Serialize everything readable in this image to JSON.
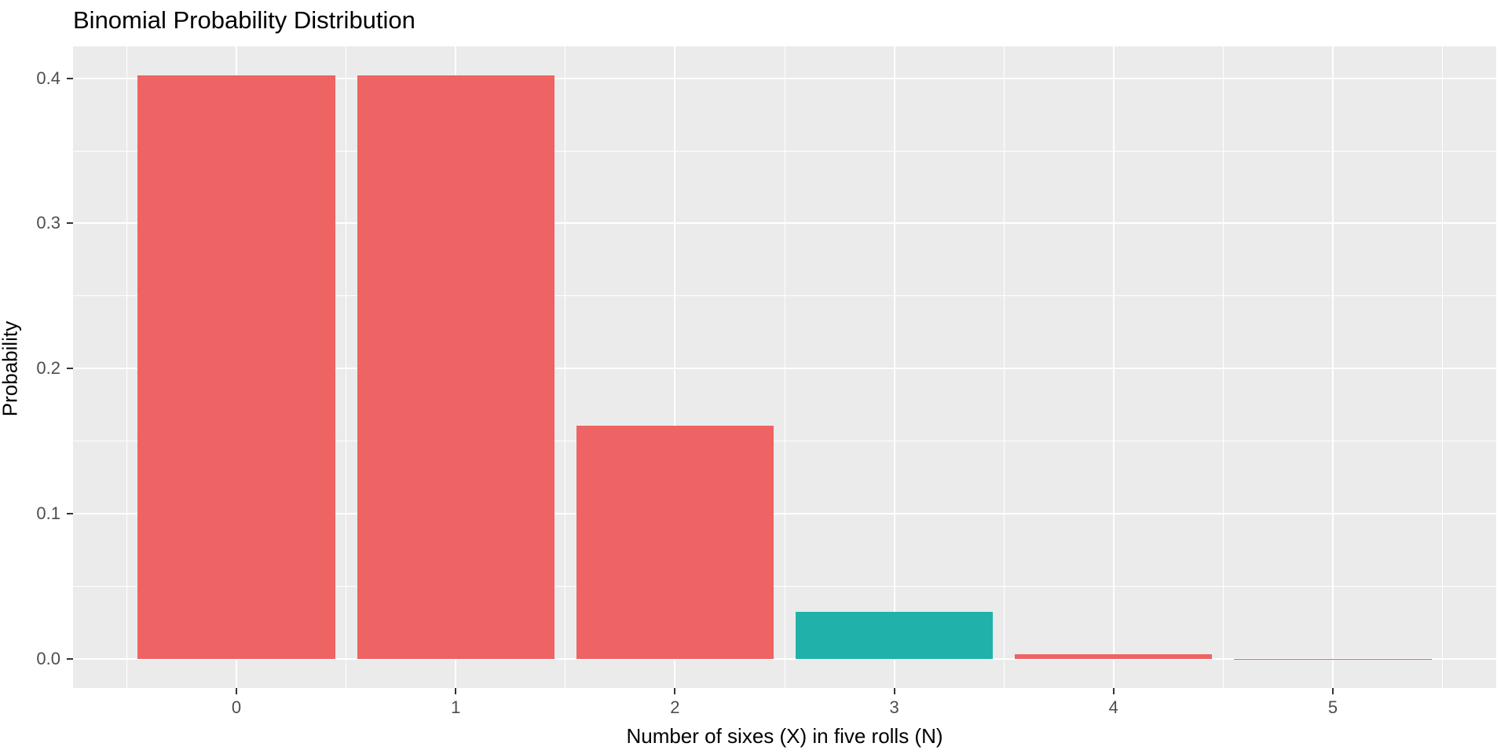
{
  "chart_data": {
    "type": "bar",
    "title": "Binomial Probability Distribution",
    "xlabel": "Number of sixes (X) in five rolls (N)",
    "ylabel": "Probability",
    "x": [
      0,
      1,
      2,
      3,
      4,
      5
    ],
    "values": [
      0.4019,
      0.4019,
      0.1608,
      0.0322,
      0.0032,
      0.0001
    ],
    "bar_width": 0.9,
    "highlight_index": 3,
    "xlim": [
      -0.745,
      5.745
    ],
    "ylim": [
      -0.0201,
      0.422
    ],
    "x_ticks": {
      "values": [
        0,
        1,
        2,
        3,
        4,
        5
      ],
      "labels": [
        "0",
        "1",
        "2",
        "3",
        "4",
        "5"
      ]
    },
    "y_ticks": {
      "values": [
        0,
        0.1,
        0.2,
        0.3,
        0.4
      ],
      "labels": [
        "0.0",
        "0.1",
        "0.2",
        "0.3",
        "0.4"
      ]
    },
    "x_minor": [
      -0.5,
      0.5,
      1.5,
      2.5,
      3.5,
      4.5,
      5.5
    ],
    "y_minor": [
      0.05,
      0.15,
      0.25,
      0.35
    ],
    "grid": true,
    "legend": "none",
    "colors": {
      "bar_default": "#EE6363",
      "bar_highlight": "#20B2AA",
      "panel_background": "#EBEBEB",
      "gridline": "#FFFFFF",
      "tick_label": "#4D4D4D",
      "tick_mark": "#333333",
      "title_text": "#000000"
    }
  }
}
